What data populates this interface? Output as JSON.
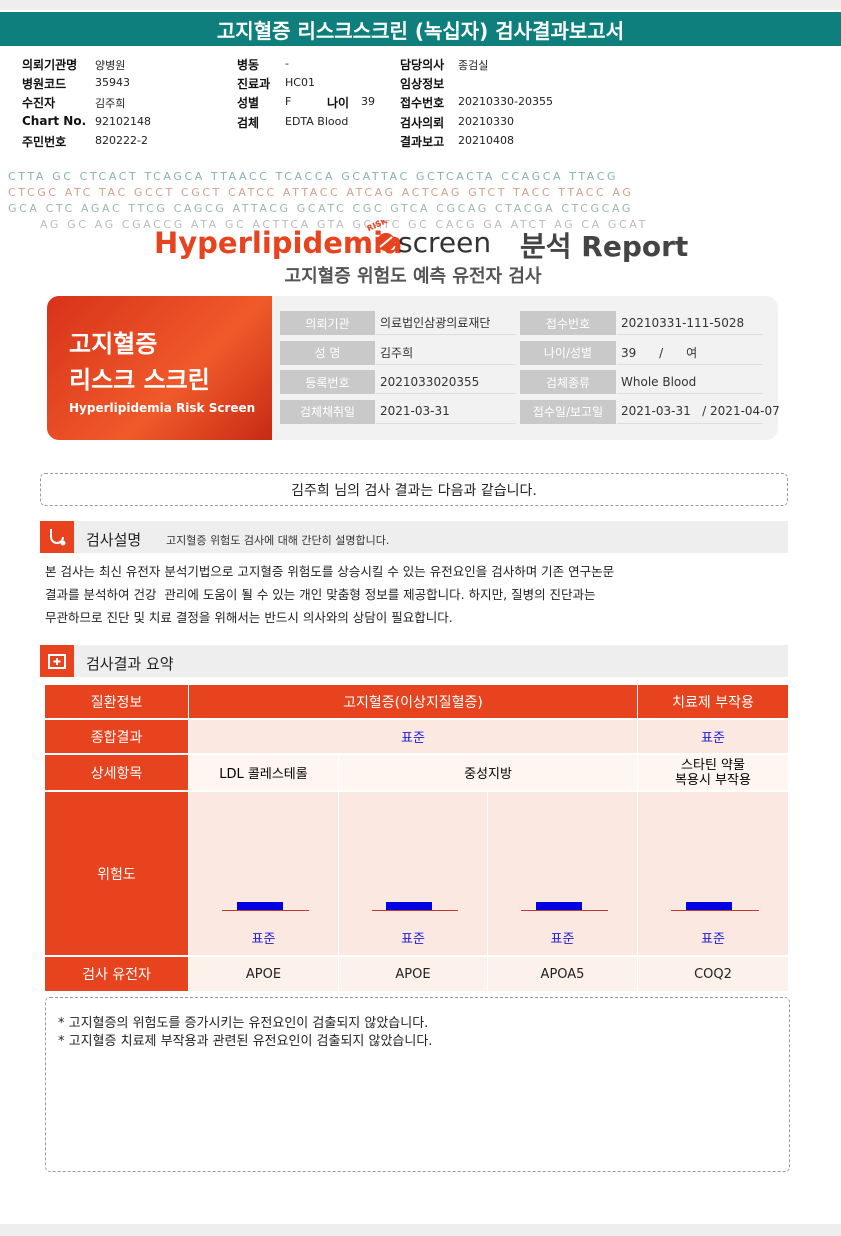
{
  "header": {
    "title": "고지혈증 리스크스크린 (녹십자) 검사결과보고서"
  },
  "order_info": {
    "col1": [
      {
        "label": "의뢰기관명",
        "value": "양병원"
      },
      {
        "label": "병원코드",
        "value": "35943"
      },
      {
        "label": "수진자",
        "value": "김주희"
      },
      {
        "label": "Chart No.",
        "value": "92102148"
      },
      {
        "label": "주민번호",
        "value": "820222-2"
      }
    ],
    "col2": [
      {
        "label": "병동",
        "value": "-"
      },
      {
        "label": "진료과",
        "value": "HC01"
      },
      {
        "label": "성별",
        "value": "F"
      },
      {
        "label": "검체",
        "value": "EDTA Blood"
      }
    ],
    "age": {
      "label": "나이",
      "value": "39"
    },
    "col3": [
      {
        "label": "담당의사",
        "value": "종검실"
      },
      {
        "label": "임상정보"
      },
      {
        "label": "접수번호",
        "value": "20210330-20355"
      },
      {
        "label": "검사의뢰",
        "value": "20210330"
      },
      {
        "label": "결과보고",
        "value": "20210408"
      }
    ]
  },
  "banner": {
    "rows": [
      "CTTA GC CTCACT  TCAGCA TTAACC TCACCA GCATTAC GCTCACTA CCAGCA TTACG",
      "CTCGC ATC TAC GCCT CGCT CATCC ATTACC ATCAG ACTCAG GTCT TACC TTACC AG",
      "GCA CTC AGAC TTCG CAGCG ATTACG GCATC CGC GTCA CGCAG CTACGA CTCGCAG",
      "AG GC AG CGACCG ATA GC ACTTCA GTA GCATC GC CACG GA ATCT AG CA GCAT"
    ]
  },
  "logo": {
    "brand": "Hyperlipidemia",
    "badge": "RISK",
    "product": "screen",
    "report": "분석 Report",
    "subtitle": "고지혈증 위험도 예측 유전자 검사"
  },
  "card": {
    "title_lines": [
      "고지혈증",
      "리스크 스크린"
    ],
    "english": "Hyperlipidemia Risk Screen",
    "rows": [
      {
        "label1": "의뢰기관",
        "value1": "의료법인삼광의료재단",
        "label2": "접수번호",
        "value2": "20210331-111-5028"
      },
      {
        "label1": "성 명",
        "value1": "김주희",
        "label2": "나이/성별",
        "value2": "39      /      여"
      },
      {
        "label1": "등록번호",
        "value1": "2021033020355",
        "label2": "검체종류",
        "value2": "Whole Blood"
      },
      {
        "label1": "검체채취일",
        "value1": "2021-03-31",
        "label2": "접수일/보고일",
        "value2": "2021-03-31   / 2021-04-07"
      }
    ]
  },
  "greeting": "김주희 님의 검사 결과는 다음과 같습니다.",
  "description": {
    "title": "검사설명",
    "subtitle": "고지혈증 위험도 검사에 대해 간단히 설명합니다.",
    "lines": [
      "본 검사는 최신 유전자 분석기법으로 고지혈증 위험도를 상승시킬 수 있는 유전요인을 검사하며 기존 연구논문",
      "결과를 분석하여 건강  관리에 도움이 될 수 있는 개인 맞춤형 정보를 제공합니다. 하지만, 질병의 진단과는",
      "무관하므로 진단 및 치료 결정을 위해서는 반드시 의사와의 상담이 필요합니다."
    ]
  },
  "summary": {
    "title": "검사결과 요약",
    "table": {
      "row_labels": [
        "질환정보",
        "종합결과",
        "상세항목",
        "위험도",
        "검사 유전자"
      ],
      "disease": [
        "고지혈증(이상지질혈증)",
        "치료제 부작용"
      ],
      "overall": [
        "표준",
        "표준"
      ],
      "details": [
        "LDL 콜레스테롤",
        "중성지방",
        "스타틴 약물\n복용시 부작용"
      ],
      "risk": [
        "표준",
        "표준",
        "표준",
        "표준"
      ],
      "genes": [
        "APOE",
        "APOE",
        "APOA5",
        "COQ2"
      ]
    },
    "notes": [
      "* 고지혈증의 위험도를 증가시키는 유전요인이 검출되지 않았습니다.",
      "* 고지혈증 치료제 부작용과 관련된 유전요인이 검출되지 않았습니다."
    ]
  }
}
